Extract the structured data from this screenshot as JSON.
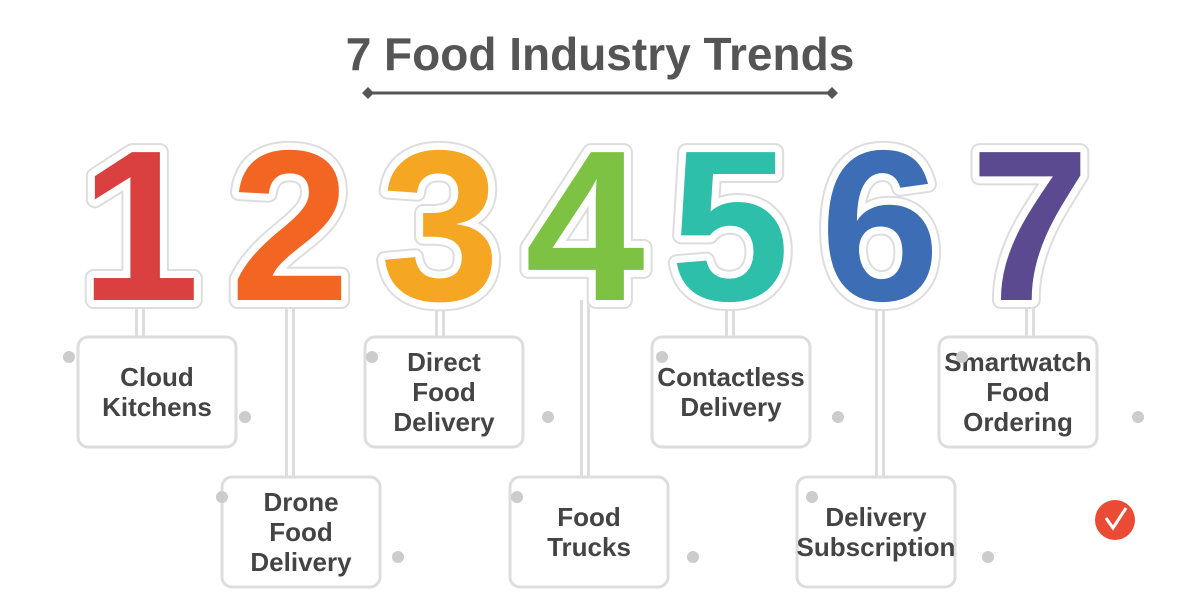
{
  "title": "7 Food Industry Trends",
  "items": [
    {
      "number": "1",
      "color": "#d9403f",
      "label": [
        "Cloud",
        "Kitchens"
      ]
    },
    {
      "number": "2",
      "color": "#f26522",
      "label": [
        "Drone",
        "Food",
        "Delivery"
      ]
    },
    {
      "number": "3",
      "color": "#f5a623",
      "label": [
        "Direct",
        "Food",
        "Delivery"
      ]
    },
    {
      "number": "4",
      "color": "#7dc242",
      "label": [
        "Food",
        "Trucks"
      ]
    },
    {
      "number": "5",
      "color": "#2ebfaa",
      "label": [
        "Contactless",
        "Delivery"
      ]
    },
    {
      "number": "6",
      "color": "#3d6db5",
      "label": [
        "Delivery",
        "Subscription"
      ]
    },
    {
      "number": "7",
      "color": "#5b4a8f",
      "label": [
        "Smartwatch",
        "Food",
        "Ordering"
      ]
    }
  ]
}
